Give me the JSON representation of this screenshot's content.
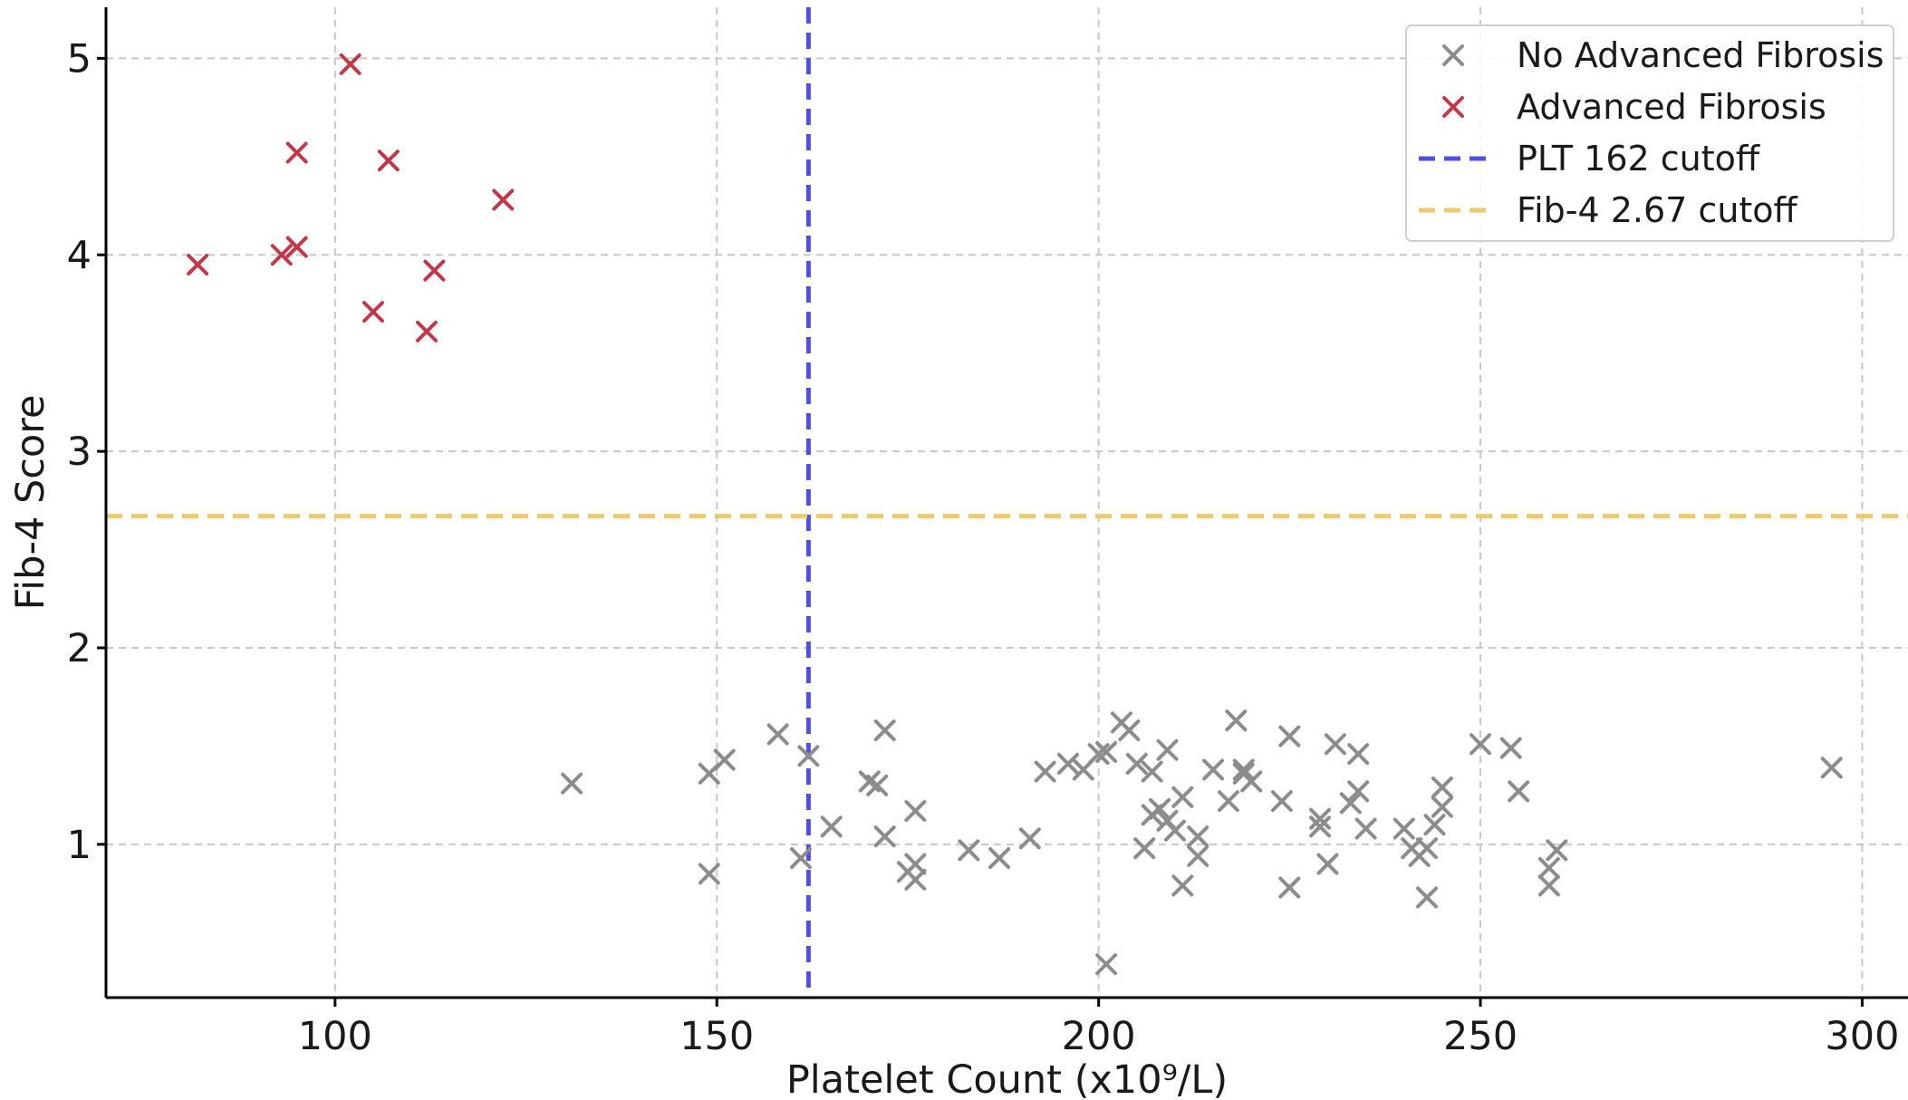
{
  "chart_data": {
    "type": "scatter",
    "title": "",
    "xlabel": "Platelet Count (x10⁹/L)",
    "ylabel": "Fib-4 Score",
    "xlim": [
      70,
      306
    ],
    "ylim": [
      0.22,
      5.26
    ],
    "xticks": [
      100,
      150,
      200,
      250,
      300
    ],
    "yticks": [
      1,
      2,
      3,
      4,
      5
    ],
    "xtick_labels": [
      "100",
      "150",
      "200",
      "250",
      "300"
    ],
    "ytick_labels": [
      "1",
      "2",
      "3",
      "4",
      "5"
    ],
    "grid": true,
    "legend_position": "top-right",
    "marker": "x",
    "series": [
      {
        "name": "No Advanced Fibrosis",
        "color": "#8c8c8c",
        "points": [
          [
            131,
            1.31
          ],
          [
            149,
            0.85
          ],
          [
            149,
            1.36
          ],
          [
            151,
            1.43
          ],
          [
            158,
            1.56
          ],
          [
            161,
            0.93
          ],
          [
            162,
            1.45
          ],
          [
            165,
            1.09
          ],
          [
            170,
            1.32
          ],
          [
            171,
            1.3
          ],
          [
            172,
            1.04
          ],
          [
            172,
            1.58
          ],
          [
            175,
            0.86
          ],
          [
            176,
            0.82
          ],
          [
            176,
            0.9
          ],
          [
            176,
            1.17
          ],
          [
            183,
            0.97
          ],
          [
            187,
            0.93
          ],
          [
            191,
            1.03
          ],
          [
            193,
            1.37
          ],
          [
            196,
            1.41
          ],
          [
            198,
            1.38
          ],
          [
            200,
            1.46
          ],
          [
            201,
            0.39
          ],
          [
            201,
            1.47
          ],
          [
            203,
            1.62
          ],
          [
            204,
            1.58
          ],
          [
            205,
            1.41
          ],
          [
            206,
            0.98
          ],
          [
            207,
            1.37
          ],
          [
            207,
            1.15
          ],
          [
            208,
            1.18
          ],
          [
            209,
            1.12
          ],
          [
            209,
            1.48
          ],
          [
            210,
            1.07
          ],
          [
            211,
            0.79
          ],
          [
            211,
            1.24
          ],
          [
            213,
            0.94
          ],
          [
            213,
            1.04
          ],
          [
            215,
            1.38
          ],
          [
            217,
            1.22
          ],
          [
            218,
            1.63
          ],
          [
            219,
            1.36
          ],
          [
            219,
            1.38
          ],
          [
            220,
            1.32
          ],
          [
            224,
            1.22
          ],
          [
            225,
            1.55
          ],
          [
            225,
            0.78
          ],
          [
            229,
            1.13
          ],
          [
            229,
            1.09
          ],
          [
            230,
            0.9
          ],
          [
            231,
            1.51
          ],
          [
            233,
            1.21
          ],
          [
            234,
            1.46
          ],
          [
            234,
            1.27
          ],
          [
            235,
            1.08
          ],
          [
            240,
            1.08
          ],
          [
            241,
            0.98
          ],
          [
            242,
            0.94
          ],
          [
            243,
            0.73
          ],
          [
            243,
            0.98
          ],
          [
            244,
            1.1
          ],
          [
            245,
            1.19
          ],
          [
            245,
            1.29
          ],
          [
            250,
            1.51
          ],
          [
            254,
            1.49
          ],
          [
            255,
            1.27
          ],
          [
            259,
            0.88
          ],
          [
            259,
            0.79
          ],
          [
            260,
            0.97
          ],
          [
            296,
            1.39
          ]
        ]
      },
      {
        "name": "Advanced Fibrosis",
        "color": "#c0394b",
        "points": [
          [
            82,
            3.95
          ],
          [
            93,
            4.0
          ],
          [
            95,
            4.52
          ],
          [
            95,
            4.04
          ],
          [
            102,
            4.97
          ],
          [
            105,
            3.71
          ],
          [
            107,
            4.48
          ],
          [
            112,
            3.61
          ],
          [
            113,
            3.92
          ],
          [
            122,
            4.28
          ]
        ]
      }
    ],
    "reference_lines": [
      {
        "name": "PLT 162 cutoff",
        "orientation": "vertical",
        "value": 162,
        "color": "#5050e0"
      },
      {
        "name": "Fib-4 2.67 cutoff",
        "orientation": "horizontal",
        "value": 2.67,
        "color": "#f0c86e"
      }
    ]
  }
}
